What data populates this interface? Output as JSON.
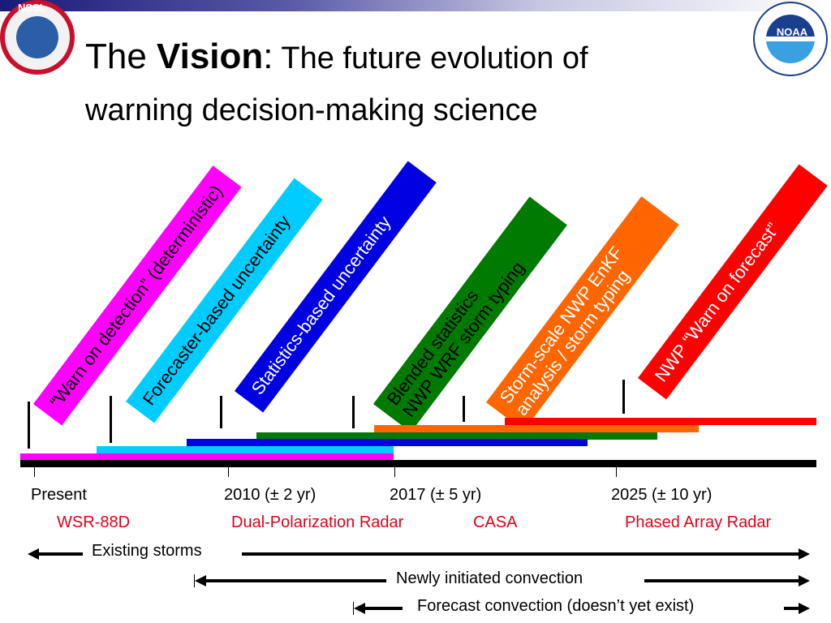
{
  "logos": {
    "left": "NSSL",
    "right": "NOAA"
  },
  "title": {
    "part1": "The ",
    "bold": "Vision",
    "colon": ":",
    "subtitle": " The future evolution of",
    "line2": "warning decision-making science"
  },
  "banners": [
    {
      "label": "“Warn on detection” (deterministic)",
      "color": "#ff00ff",
      "text_color": "#000000"
    },
    {
      "label": "Forecaster-based uncertainty",
      "color": "#00ccff",
      "text_color": "#000000"
    },
    {
      "label": "Statistics-based uncertainty",
      "color": "#0000e0",
      "text_color": "#ffffff"
    },
    {
      "label1": "Blended statistics",
      "label2": "NWP WRF storm typing",
      "color": "#007a00",
      "text_color": "#000000"
    },
    {
      "label1": "Storm-scale NWP EnKF",
      "label2": "analysis / storm typing",
      "color": "#ff6600",
      "text_color": "#ffffff"
    },
    {
      "label": "NWP “Warn on forecast”",
      "color": "#ff0000",
      "text_color": "#ffffff"
    }
  ],
  "timeline": {
    "ticks": [
      "Present",
      "2010 (± 2 yr)",
      "2017 (± 5 yr)",
      "2025 (± 10 yr)"
    ],
    "radars": [
      "WSR-88D",
      "Dual-Polarization Radar",
      "CASA",
      "Phased Array Radar"
    ],
    "radar_color": "#e3001b"
  },
  "arrows": [
    {
      "label": "Existing storms"
    },
    {
      "label": "Newly initiated convection"
    },
    {
      "label": "Forecast  convection (doesn’t yet exist)"
    }
  ]
}
